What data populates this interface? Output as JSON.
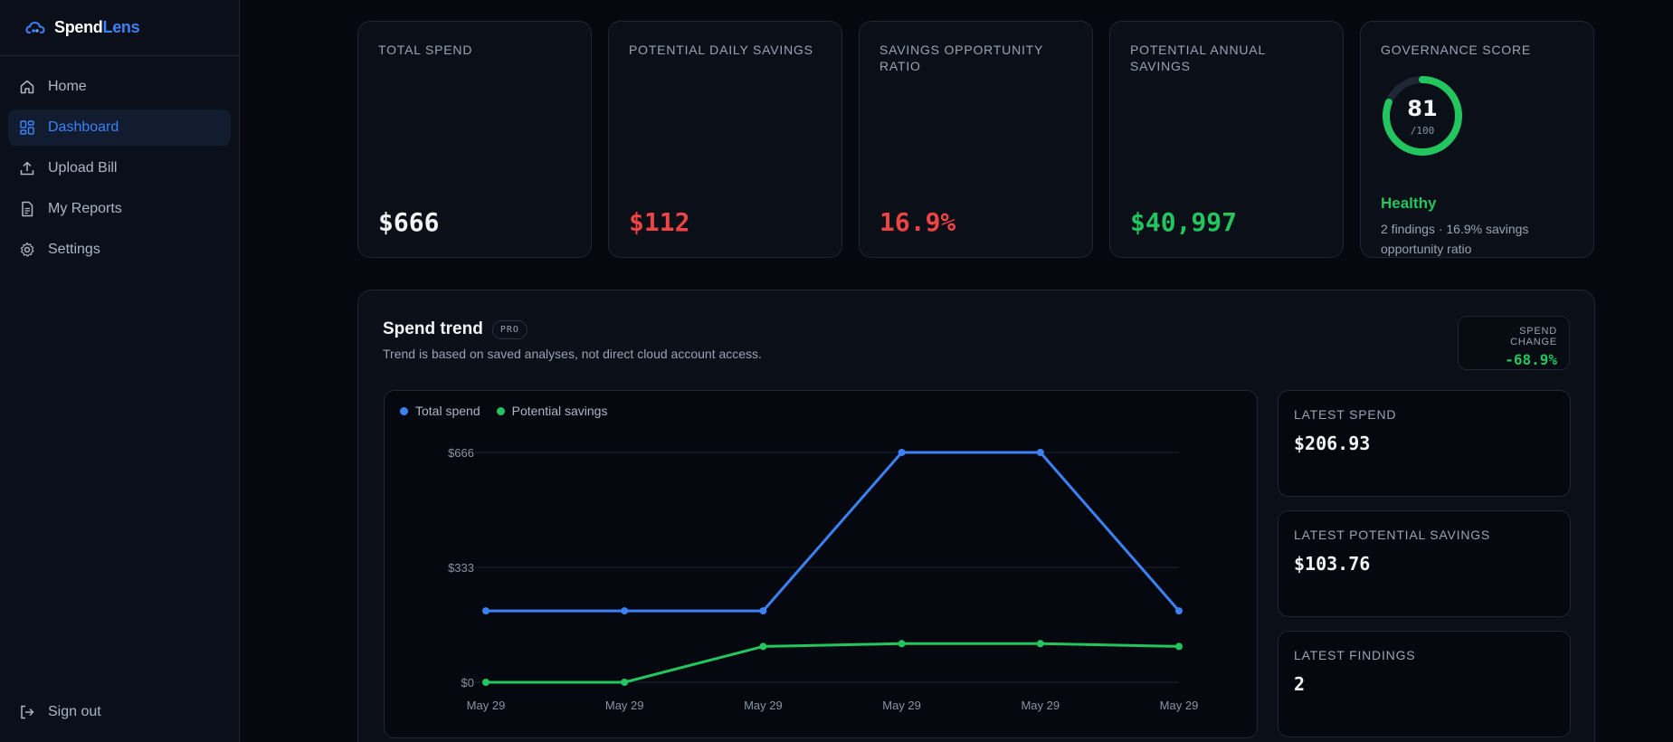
{
  "brand": {
    "name_a": "Spend",
    "name_b": "Lens"
  },
  "sidebar": {
    "items": [
      {
        "label": "Home",
        "icon": "home-icon"
      },
      {
        "label": "Dashboard",
        "icon": "dashboard-icon",
        "active": true
      },
      {
        "label": "Upload Bill",
        "icon": "upload-icon"
      },
      {
        "label": "My Reports",
        "icon": "report-icon"
      },
      {
        "label": "Settings",
        "icon": "gear-icon"
      }
    ],
    "signout": "Sign out"
  },
  "kpis": {
    "total_spend": {
      "label": "TOTAL SPEND",
      "value": "$666"
    },
    "daily_savings": {
      "label": "POTENTIAL DAILY SAVINGS",
      "value": "$112"
    },
    "opportunity_ratio": {
      "label": "SAVINGS OPPORTUNITY RATIO",
      "value": "16.9%"
    },
    "annual_savings": {
      "label": "POTENTIAL ANNUAL SAVINGS",
      "value": "$40,997"
    },
    "governance": {
      "label": "GOVERNANCE SCORE",
      "score": "81",
      "max": "/100",
      "score_fraction": 0.81,
      "status": "Healthy",
      "description": "2 findings · 16.9% savings opportunity ratio"
    }
  },
  "trend": {
    "title": "Spend trend",
    "badge": "PRO",
    "subtitle": "Trend is based on saved analyses, not direct cloud account access.",
    "change_label": "SPEND CHANGE",
    "change_value": "-68.9%",
    "latest": [
      {
        "label": "LATEST SPEND",
        "value": "$206.93"
      },
      {
        "label": "LATEST POTENTIAL SAVINGS",
        "value": "$103.76"
      },
      {
        "label": "LATEST FINDINGS",
        "value": "2"
      }
    ]
  },
  "colors": {
    "accent": "#3b82f6",
    "positive": "#22c55e",
    "negative": "#ef4444"
  },
  "chart_data": {
    "type": "line",
    "categories": [
      "May 29",
      "May 29",
      "May 29",
      "May 29",
      "May 29",
      "May 29"
    ],
    "series": [
      {
        "name": "Total spend",
        "color": "#3b82f6",
        "values": [
          206.93,
          206.93,
          206.93,
          666,
          666,
          206.93
        ]
      },
      {
        "name": "Potential savings",
        "color": "#22c55e",
        "values": [
          0,
          0,
          103.76,
          112,
          112,
          103.76
        ]
      }
    ],
    "y_ticks": [
      {
        "value": 0,
        "label": "$0"
      },
      {
        "value": 333,
        "label": "$333"
      },
      {
        "value": 666,
        "label": "$666"
      }
    ],
    "ylim": [
      0,
      666
    ],
    "grid": true,
    "legend_position": "top-left"
  }
}
